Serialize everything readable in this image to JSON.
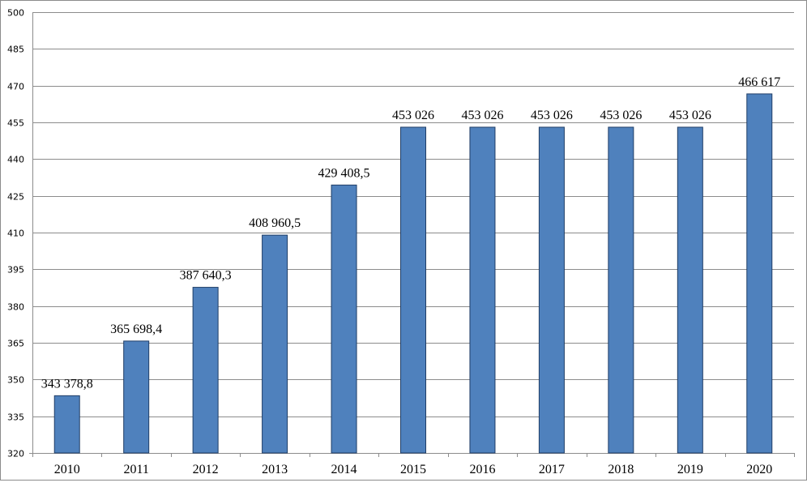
{
  "chart_data": {
    "type": "bar",
    "title": "",
    "xlabel": "",
    "ylabel": "",
    "categories": [
      "2010",
      "2011",
      "2012",
      "2013",
      "2014",
      "2015",
      "2016",
      "2017",
      "2018",
      "2019",
      "2020"
    ],
    "values": [
      343.3788,
      365.6984,
      387.6403,
      408.9605,
      429.4085,
      453.026,
      453.026,
      453.026,
      453.026,
      453.026,
      466.617
    ],
    "data_labels": [
      "343 378,8",
      "365 698,4",
      "387 640,3",
      "408 960,5",
      "429 408,5",
      "453 026",
      "453 026",
      "453 026",
      "453 026",
      "453 026",
      "466 617"
    ],
    "ylim": [
      320,
      500
    ],
    "yticks": [
      320,
      335,
      350,
      365,
      380,
      395,
      410,
      425,
      440,
      455,
      470,
      485,
      500
    ],
    "grid": true,
    "legend": "none",
    "bar_color": "#4f81bd",
    "bar_edge_color": "#1f3d66"
  }
}
